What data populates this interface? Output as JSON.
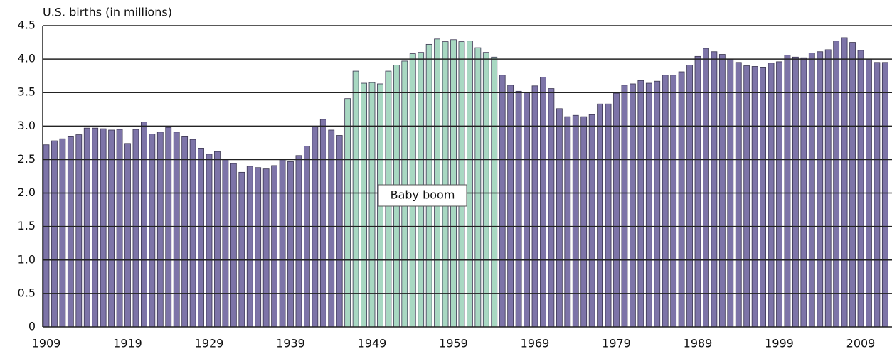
{
  "chart_data": {
    "type": "bar",
    "title": "U.S. births (in millions)",
    "annotation": "Baby boom",
    "categories": [
      "1909",
      null,
      null,
      null,
      null,
      null,
      null,
      null,
      null,
      null,
      "1919",
      null,
      null,
      null,
      null,
      null,
      null,
      null,
      null,
      null,
      "1929",
      null,
      null,
      null,
      null,
      null,
      null,
      null,
      null,
      null,
      "1939",
      null,
      null,
      null,
      null,
      null,
      null,
      null,
      null,
      null,
      "1949",
      null,
      null,
      null,
      null,
      null,
      null,
      null,
      null,
      null,
      "1959",
      null,
      null,
      null,
      null,
      null,
      null,
      null,
      null,
      null,
      "1969",
      null,
      null,
      null,
      null,
      null,
      null,
      null,
      null,
      null,
      "1979",
      null,
      null,
      null,
      null,
      null,
      null,
      null,
      null,
      null,
      "1989",
      null,
      null,
      null,
      null,
      null,
      null,
      null,
      null,
      null,
      "1999",
      null,
      null,
      null,
      null,
      null,
      null,
      null,
      null,
      null,
      "2009",
      null,
      null,
      null
    ],
    "values": [
      2.72,
      2.78,
      2.81,
      2.84,
      2.87,
      2.97,
      2.97,
      2.96,
      2.94,
      2.95,
      2.74,
      2.95,
      3.06,
      2.88,
      2.91,
      2.98,
      2.91,
      2.84,
      2.8,
      2.67,
      2.58,
      2.62,
      2.51,
      2.44,
      2.31,
      2.4,
      2.38,
      2.36,
      2.41,
      2.5,
      2.47,
      2.56,
      2.7,
      2.99,
      3.1,
      2.94,
      2.86,
      3.41,
      3.82,
      3.64,
      3.65,
      3.63,
      3.82,
      3.91,
      3.97,
      4.08,
      4.1,
      4.22,
      4.3,
      4.26,
      4.29,
      4.26,
      4.27,
      4.17,
      4.1,
      4.03,
      3.76,
      3.61,
      3.52,
      3.5,
      3.6,
      3.73,
      3.56,
      3.26,
      3.14,
      3.16,
      3.14,
      3.17,
      3.33,
      3.33,
      3.49,
      3.61,
      3.63,
      3.68,
      3.64,
      3.67,
      3.76,
      3.76,
      3.81,
      3.91,
      4.04,
      4.16,
      4.11,
      4.07,
      4.0,
      3.95,
      3.9,
      3.89,
      3.88,
      3.94,
      3.96,
      4.06,
      4.03,
      4.02,
      4.09,
      4.11,
      4.14,
      4.27,
      4.32,
      4.25,
      4.13,
      4.0,
      3.95,
      3.95
    ],
    "colors": [
      "#7d74a8",
      "#7d74a8",
      "#7d74a8",
      "#7d74a8",
      "#7d74a8",
      "#7d74a8",
      "#7d74a8",
      "#7d74a8",
      "#7d74a8",
      "#7d74a8",
      "#7d74a8",
      "#7d74a8",
      "#7d74a8",
      "#7d74a8",
      "#7d74a8",
      "#7d74a8",
      "#7d74a8",
      "#7d74a8",
      "#7d74a8",
      "#7d74a8",
      "#7d74a8",
      "#7d74a8",
      "#7d74a8",
      "#7d74a8",
      "#7d74a8",
      "#7d74a8",
      "#7d74a8",
      "#7d74a8",
      "#7d74a8",
      "#7d74a8",
      "#7d74a8",
      "#7d74a8",
      "#7d74a8",
      "#7d74a8",
      "#7d74a8",
      "#7d74a8",
      "#7d74a8",
      "#a8d8c2",
      "#a8d8c2",
      "#a8d8c2",
      "#a8d8c2",
      "#a8d8c2",
      "#a8d8c2",
      "#a8d8c2",
      "#a8d8c2",
      "#a8d8c2",
      "#a8d8c2",
      "#a8d8c2",
      "#a8d8c2",
      "#a8d8c2",
      "#a8d8c2",
      "#a8d8c2",
      "#a8d8c2",
      "#a8d8c2",
      "#a8d8c2",
      "#a8d8c2",
      "#7d74a8",
      "#7d74a8",
      "#7d74a8",
      "#7d74a8",
      "#7d74a8",
      "#7d74a8",
      "#7d74a8",
      "#7d74a8",
      "#7d74a8",
      "#7d74a8",
      "#7d74a8",
      "#7d74a8",
      "#7d74a8",
      "#7d74a8",
      "#7d74a8",
      "#7d74a8",
      "#7d74a8",
      "#7d74a8",
      "#7d74a8",
      "#7d74a8",
      "#7d74a8",
      "#7d74a8",
      "#7d74a8",
      "#7d74a8",
      "#7d74a8",
      "#7d74a8",
      "#7d74a8",
      "#7d74a8",
      "#7d74a8",
      "#7d74a8",
      "#7d74a8",
      "#7d74a8",
      "#7d74a8",
      "#7d74a8",
      "#7d74a8",
      "#7d74a8",
      "#7d74a8",
      "#7d74a8",
      "#7d74a8",
      "#7d74a8",
      "#7d74a8",
      "#7d74a8",
      "#7d74a8",
      "#7d74a8",
      "#7d74a8",
      "#7d74a8",
      "#7d74a8",
      "#7d74a8"
    ],
    "ylim": [
      0,
      4.5
    ],
    "yticks": [
      0,
      0.5,
      {
        "value": 1,
        "label": "1.0"
      },
      1.5,
      {
        "value": 2,
        "label": "2.0"
      },
      2.5,
      {
        "value": 3,
        "label": "3.0"
      },
      3.5,
      {
        "value": 4,
        "label": "4.0"
      },
      4.5
    ],
    "grid": true
  }
}
